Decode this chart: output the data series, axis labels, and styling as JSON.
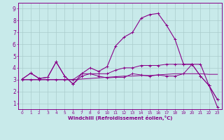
{
  "bg_color": "#c8eaea",
  "grid_color": "#aacccc",
  "line_color": "#880088",
  "xlabel": "Windchill (Refroidissement éolien,°C)",
  "xlim": [
    -0.5,
    23.5
  ],
  "ylim": [
    0.5,
    9.5
  ],
  "xticks": [
    0,
    1,
    2,
    3,
    4,
    5,
    6,
    7,
    8,
    9,
    10,
    11,
    12,
    13,
    14,
    15,
    16,
    17,
    18,
    19,
    20,
    21,
    22,
    23
  ],
  "yticks": [
    1,
    2,
    3,
    4,
    5,
    6,
    7,
    8,
    9
  ],
  "line1_x": [
    0,
    1,
    2,
    3,
    4,
    5,
    6,
    7,
    8,
    9,
    10,
    11,
    12,
    13,
    14,
    15,
    16,
    17,
    18,
    19,
    20,
    21,
    22,
    23
  ],
  "line1_y": [
    3.05,
    3.55,
    3.1,
    3.2,
    4.5,
    3.3,
    2.62,
    3.3,
    3.5,
    3.3,
    3.15,
    3.2,
    3.2,
    3.5,
    3.4,
    3.3,
    3.4,
    3.3,
    3.3,
    3.5,
    4.3,
    3.3,
    2.5,
    1.3
  ],
  "line2_x": [
    0,
    1,
    2,
    3,
    4,
    5,
    6,
    7,
    8,
    9,
    10,
    11,
    12,
    13,
    14,
    15,
    16,
    17,
    18,
    19,
    20,
    21,
    22,
    23
  ],
  "line2_y": [
    3.0,
    3.0,
    3.0,
    3.0,
    3.0,
    3.0,
    3.0,
    3.05,
    3.1,
    3.15,
    3.2,
    3.25,
    3.3,
    3.3,
    3.35,
    3.35,
    3.4,
    3.45,
    3.5,
    3.5,
    3.5,
    3.5,
    3.45,
    3.45
  ],
  "line3_x": [
    0,
    1,
    2,
    3,
    4,
    5,
    6,
    7,
    8,
    9,
    10,
    11,
    12,
    13,
    14,
    15,
    16,
    17,
    18,
    19,
    20,
    21,
    22,
    23
  ],
  "line3_y": [
    3.05,
    3.55,
    3.1,
    3.2,
    4.5,
    3.3,
    2.62,
    3.5,
    4.0,
    3.7,
    4.1,
    5.85,
    6.6,
    7.0,
    8.2,
    8.5,
    8.6,
    7.6,
    6.4,
    4.3,
    4.3,
    4.3,
    2.5,
    0.65
  ],
  "line4_x": [
    0,
    1,
    2,
    3,
    4,
    5,
    6,
    7,
    8,
    9,
    10,
    11,
    12,
    13,
    14,
    15,
    16,
    17,
    18,
    19,
    20,
    21,
    22,
    23
  ],
  "line4_y": [
    3.0,
    3.0,
    3.0,
    3.0,
    3.0,
    3.0,
    3.0,
    3.5,
    3.5,
    3.5,
    3.5,
    3.8,
    4.0,
    4.0,
    4.2,
    4.2,
    4.2,
    4.3,
    4.3,
    4.3,
    4.3,
    3.3,
    2.5,
    1.3
  ]
}
